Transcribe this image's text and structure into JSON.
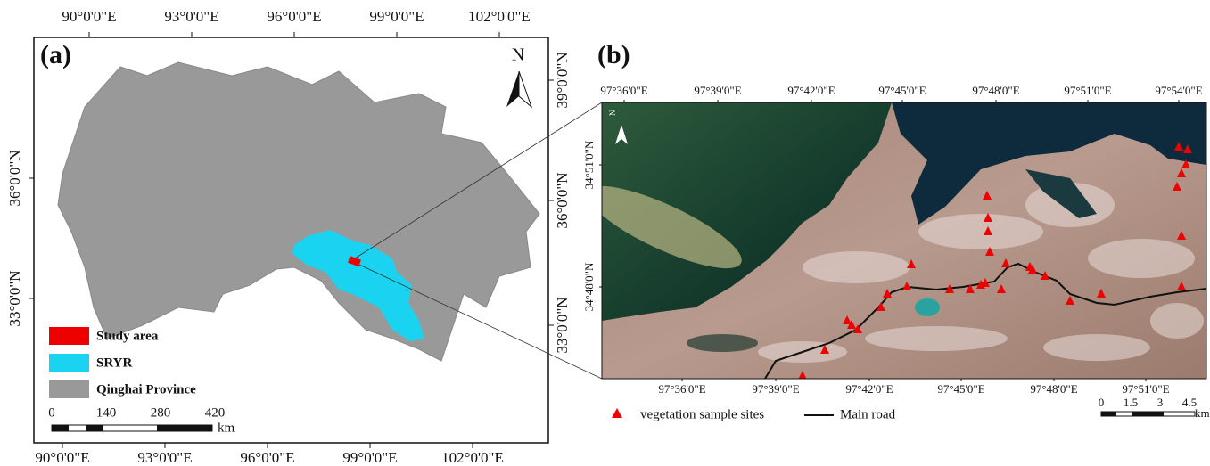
{
  "panel_a": {
    "label": "(a)",
    "north": "N",
    "top_labels": [
      "90°0'0\"E",
      "93°0'0\"E",
      "96°0'0\"E",
      "99°0'0\"E",
      "102°0'0\"E"
    ],
    "bottom_labels": [
      "90°0'0\"E",
      "93°0'0\"E",
      "96°0'0\"E",
      "99°0'0\"E",
      "102°0'0\"E"
    ],
    "left_labels": [
      "36°0'0\"N",
      "33°0'0\"N"
    ],
    "right_labels": [
      "39°0'0\"N",
      "36°0'0\"N",
      "33°0'0\"N"
    ],
    "legend": [
      "Study area",
      "SRYR",
      "Qinghai Province"
    ],
    "scale_labels": [
      "0",
      "140",
      "280",
      "420"
    ],
    "scale_unit": "km"
  },
  "panel_b": {
    "label": "(b)",
    "north": "N",
    "top_labels": [
      "97°36'0\"E",
      "97°39'0\"E",
      "97°42'0\"E",
      "97°45'0\"E",
      "97°48'0\"E",
      "97°51'0\"E",
      "97°54'0\"E"
    ],
    "bottom_labels": [
      "97°36'0\"E",
      "97°39'0\"E",
      "97°42'0\"E",
      "97°45'0\"E",
      "97°48'0\"E",
      "97°51'0\"E"
    ],
    "left_labels": [
      "34°51'0\"N",
      "34°48'0\"N"
    ],
    "legend": [
      "vegetation sample sites",
      "Main road"
    ],
    "scale_labels": [
      "0",
      "1.5",
      "3",
      "4.5"
    ],
    "scale_unit": "km"
  }
}
